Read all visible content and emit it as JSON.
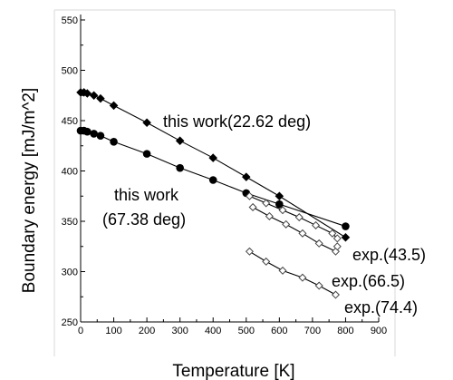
{
  "chart_data": {
    "type": "line",
    "title": "",
    "xlabel": "Temperature [K]",
    "ylabel": "Boundary energy [mJ/m^2]",
    "xlim": [
      0,
      900
    ],
    "ylim": [
      250,
      550
    ],
    "xticks": [
      0,
      100,
      200,
      300,
      400,
      500,
      600,
      700,
      800,
      900
    ],
    "yticks": [
      250,
      300,
      350,
      400,
      450,
      500,
      550
    ],
    "grid": false,
    "legend": "none",
    "series": [
      {
        "name": "this work(22.62 deg)",
        "marker": "diamond-filled",
        "color": "#000000",
        "x": [
          0,
          10,
          20,
          40,
          60,
          100,
          200,
          300,
          400,
          500,
          600,
          800
        ],
        "y": [
          478,
          478,
          477,
          475,
          472,
          465,
          448,
          430,
          413,
          394,
          375,
          334
        ]
      },
      {
        "name": "this work\n(67.38 deg)",
        "marker": "circle-filled",
        "color": "#000000",
        "x": [
          0,
          10,
          20,
          40,
          60,
          100,
          200,
          300,
          400,
          500,
          600,
          800
        ],
        "y": [
          440,
          440,
          439,
          437,
          435,
          429,
          417,
          403,
          391,
          378,
          367,
          345
        ]
      },
      {
        "name": "exp.(43.5)",
        "marker": "diamond-open",
        "color": "#000000",
        "x": [
          510,
          560,
          610,
          660,
          710,
          760,
          775
        ],
        "y": [
          375,
          368,
          361,
          354,
          346,
          338,
          333
        ]
      },
      {
        "name": "exp.(66.5)",
        "marker": "diamond-open",
        "color": "#000000",
        "x": [
          520,
          570,
          620,
          670,
          720,
          770
        ],
        "y": [
          364,
          355,
          347,
          338,
          328,
          320
        ]
      },
      {
        "name": "exp.(74.4)",
        "marker": "diamond-open",
        "color": "#000000",
        "x": [
          510,
          560,
          610,
          670,
          720,
          770
        ],
        "y": [
          320,
          310,
          301,
          294,
          286,
          277
        ]
      }
    ],
    "extra_points": [
      {
        "series": "exp.(66.5)",
        "x": [
          775
        ],
        "y": [
          325
        ]
      }
    ],
    "annotations": [
      {
        "text": "this work(22.62 deg)",
        "series": 0
      },
      {
        "text": "this work",
        "series": 1
      },
      {
        "text": "(67.38 deg)",
        "series": 1
      },
      {
        "text": "exp.(43.5)",
        "series": 2
      },
      {
        "text": "exp.(66.5)",
        "series": 3
      },
      {
        "text": "exp.(74.4)",
        "series": 4
      }
    ]
  }
}
